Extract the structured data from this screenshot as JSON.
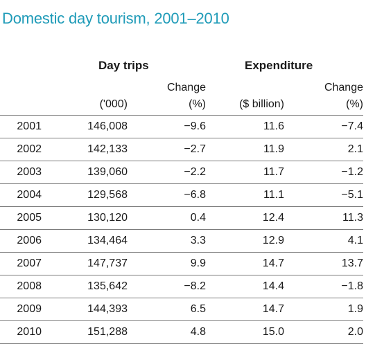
{
  "title": "Domestic day tourism, 2001–2010",
  "headers": {
    "day_trips": "Day trips",
    "expenditure": "Expenditure",
    "trips_unit": "('000)",
    "trips_change_line1": "Change",
    "trips_change_line2": "(%)",
    "exp_unit": "($ billion)",
    "exp_change_line1": "Change",
    "exp_change_line2": "(%)"
  },
  "rows": [
    {
      "year": "2001",
      "trips": "146,008",
      "trips_change": "−9.6",
      "expenditure": "11.6",
      "exp_change": "−7.4"
    },
    {
      "year": "2002",
      "trips": "142,133",
      "trips_change": "−2.7",
      "expenditure": "11.9",
      "exp_change": "2.1"
    },
    {
      "year": "2003",
      "trips": "139,060",
      "trips_change": "−2.2",
      "expenditure": "11.7",
      "exp_change": "−1.2"
    },
    {
      "year": "2004",
      "trips": "129,568",
      "trips_change": "−6.8",
      "expenditure": "11.1",
      "exp_change": "−5.1"
    },
    {
      "year": "2005",
      "trips": "130,120",
      "trips_change": "0.4",
      "expenditure": "12.4",
      "exp_change": "11.3"
    },
    {
      "year": "2006",
      "trips": "134,464",
      "trips_change": "3.3",
      "expenditure": "12.9",
      "exp_change": "4.1"
    },
    {
      "year": "2007",
      "trips": "147,737",
      "trips_change": "9.9",
      "expenditure": "14.7",
      "exp_change": "13.7"
    },
    {
      "year": "2008",
      "trips": "135,642",
      "trips_change": "−8.2",
      "expenditure": "14.4",
      "exp_change": "−1.8"
    },
    {
      "year": "2009",
      "trips": "144,393",
      "trips_change": "6.5",
      "expenditure": "14.7",
      "exp_change": "1.9"
    },
    {
      "year": "2010",
      "trips": "151,288",
      "trips_change": "4.8",
      "expenditure": "15.0",
      "exp_change": "2.0"
    }
  ],
  "colors": {
    "title": "#1f9bb8",
    "rule": "#7a7a7a",
    "text": "#1a1a1a"
  }
}
